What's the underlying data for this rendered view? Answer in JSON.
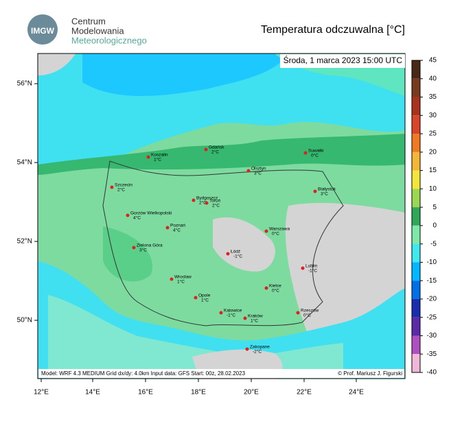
{
  "header": {
    "logo_text": "IMGW",
    "org_lines": [
      "Centrum",
      "Modelowania",
      "Meteorologicznego"
    ],
    "title": "Temperatura odczuwalna [°C]"
  },
  "map": {
    "date_label": "Środa, 1 marca 2023 15:00 UTC",
    "lat_labels": [
      "56°N",
      "54°N",
      "52°N",
      "50°N"
    ],
    "lon_labels": [
      "12°E",
      "14°E",
      "16°E",
      "18°E",
      "20°E",
      "22°E",
      "24°E"
    ],
    "cities": [
      {
        "name": "Koszalin",
        "temp": "1°C"
      },
      {
        "name": "Gdańsk",
        "temp": "2°C"
      },
      {
        "name": "Suwałki",
        "temp": "0°C"
      },
      {
        "name": "Olsztyn",
        "temp": "3°C"
      },
      {
        "name": "Szczecin",
        "temp": "2°C"
      },
      {
        "name": "Białystok",
        "temp": "3°C"
      },
      {
        "name": "Bydgoszcz",
        "temp": "2°C"
      },
      {
        "name": "Toruń",
        "temp": "2°C"
      },
      {
        "name": "Gorzów Wielkopolski",
        "temp": "4°C"
      },
      {
        "name": "Poznań",
        "temp": "4°C"
      },
      {
        "name": "Warszawa",
        "temp": "0°C"
      },
      {
        "name": "Zielona Góra",
        "temp": "3°C"
      },
      {
        "name": "Łódź",
        "temp": "-1°C"
      },
      {
        "name": "Lublin",
        "temp": "-1°C"
      },
      {
        "name": "Wrocław",
        "temp": "1°C"
      },
      {
        "name": "Kielce",
        "temp": "0°C"
      },
      {
        "name": "Opole",
        "temp": "1°C"
      },
      {
        "name": "Katowice",
        "temp": "-1°C"
      },
      {
        "name": "Kraków",
        "temp": "1°C"
      },
      {
        "name": "Rzeszów",
        "temp": "0°C"
      },
      {
        "name": "Zakopane",
        "temp": "-2°C"
      }
    ],
    "footer_left": "Model: WRF 4.3 MEDIUM   Grid dx/dy: 4.0km   Input data: GFS   Start: 00z, 28.02.2023",
    "footer_right": "© Prof. Mariusz J. Figurski"
  },
  "colorbar": {
    "ticks": [
      45,
      40,
      35,
      30,
      25,
      20,
      15,
      10,
      5,
      0,
      -5,
      -10,
      -15,
      -20,
      -25,
      -30,
      -35,
      -40
    ],
    "colors": [
      "#4a2816",
      "#7a3a1e",
      "#a8321e",
      "#d8452a",
      "#ef7a22",
      "#f4b638",
      "#f2e63a",
      "#9ad852",
      "#2fa85a",
      "#7ee8a8",
      "#40e8f0",
      "#00b8ff",
      "#0070e8",
      "#1a2cb0",
      "#5a2aa8",
      "#b050c0",
      "#f0b8d8"
    ]
  }
}
